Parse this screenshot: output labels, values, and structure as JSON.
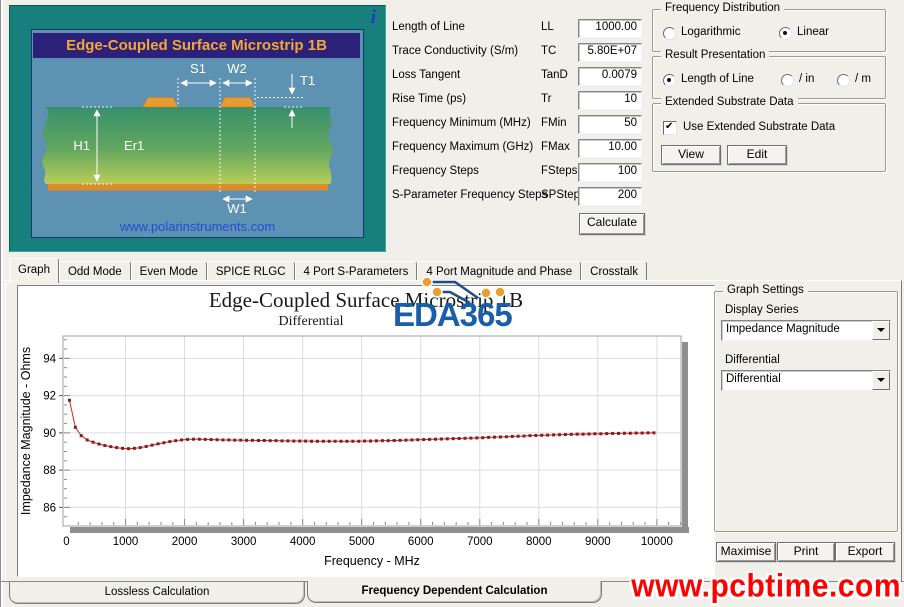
{
  "diagram": {
    "title": "Edge-Coupled Surface Microstrip 1B",
    "info_icon": "i",
    "website": "www.polarinstruments.com",
    "labels": {
      "s1": "S1",
      "w2": "W2",
      "t1": "T1",
      "h1": "H1",
      "er1": "Er1",
      "w1": "W1"
    },
    "colors": {
      "panel": "#17807D",
      "inner": "#5E92B2",
      "title_bar": "#2B2178",
      "title_text": "#F2A63B",
      "substrate_top": "#37906B",
      "substrate_bottom": "#BACD58",
      "copper": "#E0912F"
    }
  },
  "form": {
    "rows": [
      {
        "label": "Length of Line",
        "symbol": "LL",
        "value": "1000.00"
      },
      {
        "label": "Trace Conductivity (S/m)",
        "symbol": "TC",
        "value": "5.80E+07"
      },
      {
        "label": "Loss Tangent",
        "symbol": "TanD",
        "value": "0.0079"
      },
      {
        "label": "Rise Time (ps)",
        "symbol": "Tr",
        "value": "10"
      },
      {
        "label": "Frequency Minimum (MHz)",
        "symbol": "FMin",
        "value": "50"
      },
      {
        "label": "Frequency Maximum (GHz)",
        "symbol": "FMax",
        "value": "10.00"
      },
      {
        "label": "Frequency Steps",
        "symbol": "FSteps",
        "value": "100"
      },
      {
        "label": "S-Parameter Frequency Steps",
        "symbol": "SPSteps",
        "value": "200"
      }
    ],
    "calculate_label": "Calculate"
  },
  "options": {
    "frequency_distribution": {
      "title": "Frequency Distribution",
      "logarithmic": {
        "label": "Logarithmic",
        "selected": false
      },
      "linear": {
        "label": "Linear",
        "selected": true
      }
    },
    "result_presentation": {
      "title": "Result Presentation",
      "length_of_line": {
        "label": "Length of Line",
        "selected": true
      },
      "per_in": {
        "label": "/ in",
        "selected": false
      },
      "per_m": {
        "label": "/ m",
        "selected": false
      }
    },
    "extended_substrate": {
      "title": "Extended Substrate Data",
      "checkbox_label": "Use Extended Substrate Data",
      "checked": true,
      "view_label": "View",
      "edit_label": "Edit"
    }
  },
  "tabs": {
    "items": [
      "Graph",
      "Odd Mode",
      "Even Mode",
      "SPICE RLGC",
      "4 Port S-Parameters",
      "4 Port Magnitude and Phase",
      "Crosstalk"
    ],
    "active": "Graph"
  },
  "graph_settings": {
    "title": "Graph Settings",
    "display_series_label": "Display Series",
    "display_series_value": "Impedance Magnitude",
    "differential_label": "Differential",
    "differential_value": "Differential",
    "maximise_label": "Maximise",
    "print_label": "Print",
    "export_label": "Export"
  },
  "bottom_tabs": {
    "lossless": {
      "label": "Lossless Calculation",
      "active": false
    },
    "frequency_dependent": {
      "label": "Frequency Dependent Calculation",
      "active": true
    }
  },
  "watermarks": {
    "eda365": "EDA365",
    "pcbtime": "www.pcbtime.com"
  },
  "chart_data": {
    "type": "line",
    "title": "Edge-Coupled Surface Microstrip 1B",
    "subtitle": "Differential",
    "xlabel": "Frequency - MHz",
    "ylabel": "Impedance Magnitude - Ohms",
    "xlim": [
      0,
      10400
    ],
    "ylim": [
      85.0,
      95.2
    ],
    "xticks": [
      0,
      1000,
      2000,
      3000,
      4000,
      5000,
      6000,
      7000,
      8000,
      9000,
      10000
    ],
    "yticks": [
      86,
      88,
      90,
      92,
      94
    ],
    "x_minor_step": 200,
    "y_minor_step": 0.5,
    "grid": true,
    "legend_position": "none",
    "series": [
      {
        "name": "Impedance Magnitude (Differential)",
        "marker": "square",
        "marker_color": "#8B1A1A",
        "line_color": "#B23030",
        "x": [
          50,
          150,
          250,
          350,
          450,
          550,
          650,
          750,
          850,
          950,
          1050,
          1150,
          1250,
          1350,
          1450,
          1550,
          1650,
          1750,
          1850,
          1950,
          2050,
          2150,
          2250,
          2350,
          2450,
          2550,
          2650,
          2750,
          2850,
          2950,
          3050,
          3150,
          3250,
          3350,
          3450,
          3550,
          3650,
          3750,
          3850,
          3950,
          4050,
          4150,
          4250,
          4350,
          4450,
          4550,
          4650,
          4750,
          4850,
          4950,
          5050,
          5150,
          5250,
          5350,
          5450,
          5550,
          5650,
          5750,
          5850,
          5950,
          6050,
          6150,
          6250,
          6350,
          6450,
          6550,
          6650,
          6750,
          6850,
          6950,
          7050,
          7150,
          7250,
          7350,
          7450,
          7550,
          7650,
          7750,
          7850,
          7950,
          8050,
          8150,
          8250,
          8350,
          8450,
          8550,
          8650,
          8750,
          8850,
          8950,
          9050,
          9150,
          9250,
          9350,
          9450,
          9550,
          9650,
          9750,
          9850,
          9950
        ],
        "y": [
          91.75,
          90.3,
          89.85,
          89.62,
          89.5,
          89.4,
          89.32,
          89.26,
          89.21,
          89.17,
          89.15,
          89.17,
          89.21,
          89.27,
          89.34,
          89.41,
          89.47,
          89.53,
          89.58,
          89.62,
          89.65,
          89.66,
          89.66,
          89.65,
          89.64,
          89.63,
          89.62,
          89.62,
          89.61,
          89.61,
          89.6,
          89.6,
          89.59,
          89.59,
          89.58,
          89.58,
          89.57,
          89.57,
          89.56,
          89.56,
          89.56,
          89.55,
          89.55,
          89.55,
          89.55,
          89.55,
          89.55,
          89.55,
          89.55,
          89.55,
          89.56,
          89.56,
          89.57,
          89.58,
          89.58,
          89.59,
          89.6,
          89.61,
          89.62,
          89.63,
          89.64,
          89.65,
          89.66,
          89.67,
          89.68,
          89.69,
          89.7,
          89.71,
          89.72,
          89.73,
          89.74,
          89.76,
          89.77,
          89.78,
          89.79,
          89.81,
          89.82,
          89.83,
          89.85,
          89.86,
          89.87,
          89.88,
          89.89,
          89.9,
          89.91,
          89.92,
          89.93,
          89.93,
          89.94,
          89.95,
          89.95,
          89.96,
          89.97,
          89.97,
          89.98,
          89.98,
          89.99,
          89.99,
          90.0,
          90.0
        ]
      }
    ]
  }
}
